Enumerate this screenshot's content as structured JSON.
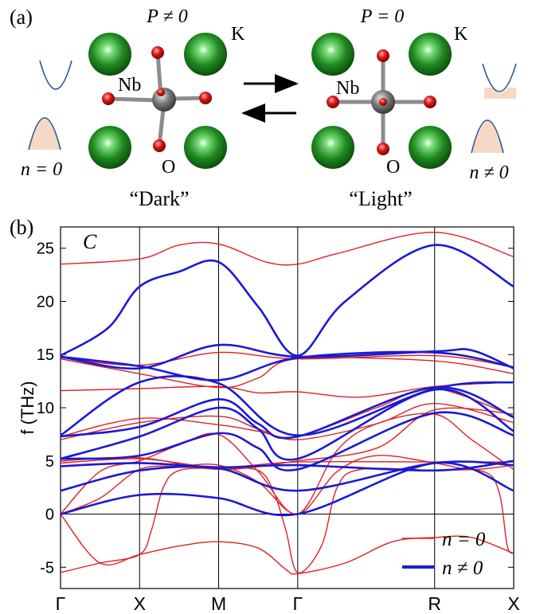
{
  "panel_a": {
    "label": "(a)",
    "left_state": {
      "polarization": "P ≠ 0",
      "caption": "“Dark”",
      "carrier": "n = 0"
    },
    "right_state": {
      "polarization": "P = 0",
      "caption": "“Light”",
      "carrier": "n ≠ 0"
    },
    "atoms": {
      "k": "K",
      "nb": "Nb",
      "o": "O"
    },
    "colors": {
      "k": "#1f8a1f",
      "nb": "#7a7a7a",
      "o": "#d21414",
      "band": "#2f5597",
      "fill": "#f6d9c4"
    }
  },
  "panel_b": {
    "label": "(b)",
    "phase": "C"
  },
  "chart_data": {
    "type": "line",
    "ylabel": "f (THz)",
    "ylim": [
      -7,
      27
    ],
    "yticks": [
      -5,
      0,
      5,
      10,
      15,
      20,
      25
    ],
    "kpoints": [
      "Γ",
      "X",
      "M",
      "Γ",
      "R",
      "X"
    ],
    "kpoint_positions": [
      0,
      1,
      2,
      3,
      4.732,
      5.732
    ],
    "legend": {
      "placement": "bottom-right"
    },
    "series": [
      {
        "name": "n = 0",
        "color": "#e02020",
        "bands": [
          [
            [
              0,
              0
            ],
            [
              0.5,
              -4.6
            ],
            [
              1,
              -3.8
            ],
            [
              1.5,
              -3.0
            ],
            [
              2,
              -2.6
            ],
            [
              2.5,
              -3.2
            ],
            [
              2.85,
              -5.2
            ],
            [
              3,
              -5.6
            ],
            [
              3.6,
              -4.6
            ],
            [
              4.2,
              -2.6
            ],
            [
              4.732,
              -2.2
            ],
            [
              5.2,
              -2.2
            ],
            [
              5.732,
              -3.7
            ]
          ],
          [
            [
              0,
              -5.5
            ],
            [
              0.5,
              -4.6
            ],
            [
              1,
              -3.8
            ],
            [
              1.15,
              -1.5
            ],
            [
              1.3,
              2.5
            ],
            [
              1.5,
              4.1
            ],
            [
              2,
              4.3
            ],
            [
              2.5,
              4.1
            ],
            [
              2.7,
              2.0
            ],
            [
              2.85,
              -1.5
            ],
            [
              3,
              -5.5
            ],
            [
              3.3,
              -3.0
            ],
            [
              3.5,
              2.5
            ],
            [
              3.8,
              4.2
            ],
            [
              4.732,
              4.1
            ],
            [
              5.35,
              4.0
            ],
            [
              5.55,
              2.0
            ],
            [
              5.65,
              -3.0
            ],
            [
              5.732,
              -3.7
            ]
          ],
          [
            [
              0,
              0
            ],
            [
              0.5,
              1.5
            ],
            [
              1,
              4.2
            ],
            [
              1.5,
              4.5
            ],
            [
              2,
              4.6
            ],
            [
              2.5,
              3.0
            ],
            [
              3,
              0
            ],
            [
              3.5,
              4.0
            ],
            [
              4,
              5.5
            ],
            [
              4.732,
              4.8
            ],
            [
              5.2,
              4.2
            ],
            [
              5.732,
              4.6
            ]
          ],
          [
            [
              0,
              0
            ],
            [
              0.5,
              4.0
            ],
            [
              1,
              5.0
            ],
            [
              1.5,
              6.5
            ],
            [
              2,
              7.5
            ],
            [
              2.5,
              4.0
            ],
            [
              3,
              0
            ],
            [
              3.5,
              6.0
            ],
            [
              4,
              8.5
            ],
            [
              4.732,
              9.4
            ],
            [
              5.2,
              7.0
            ],
            [
              5.732,
              4.2
            ]
          ],
          [
            [
              0,
              4.8
            ],
            [
              1,
              5.2
            ],
            [
              2,
              4.4
            ],
            [
              3,
              4.9
            ],
            [
              4.732,
              4.9
            ],
            [
              5.732,
              4.9
            ]
          ],
          [
            [
              0,
              5.0
            ],
            [
              1,
              5.3
            ],
            [
              2,
              4.2
            ],
            [
              3,
              5.0
            ],
            [
              4,
              6.2
            ],
            [
              4.732,
              9.8
            ],
            [
              5.732,
              9.4
            ]
          ],
          [
            [
              0,
              7.0
            ],
            [
              1,
              8.6
            ],
            [
              2,
              9.2
            ],
            [
              2.5,
              8.0
            ],
            [
              3,
              7.0
            ],
            [
              4,
              8.5
            ],
            [
              4.732,
              10.4
            ],
            [
              5.732,
              8.6
            ]
          ],
          [
            [
              0,
              7.3
            ],
            [
              1,
              9.0
            ],
            [
              2,
              8.4
            ],
            [
              2.5,
              7.8
            ],
            [
              3,
              7.3
            ],
            [
              4,
              10.0
            ],
            [
              4.732,
              11.8
            ],
            [
              5.732,
              9.2
            ]
          ],
          [
            [
              0,
              11.6
            ],
            [
              1,
              11.8
            ],
            [
              2,
              12.0
            ],
            [
              2.5,
              11.4
            ],
            [
              3,
              11.5
            ],
            [
              3.8,
              11.0
            ],
            [
              4.732,
              12.0
            ],
            [
              5.732,
              12.4
            ]
          ],
          [
            [
              0,
              14.6
            ],
            [
              1,
              13.2
            ],
            [
              2,
              11.9
            ],
            [
              2.5,
              12.8
            ],
            [
              3,
              14.6
            ],
            [
              4.732,
              14.4
            ],
            [
              5.732,
              13.2
            ]
          ],
          [
            [
              0,
              14.7
            ],
            [
              1,
              14.0
            ],
            [
              2,
              15.2
            ],
            [
              3,
              14.6
            ],
            [
              4.732,
              14.9
            ],
            [
              5.732,
              13.8
            ]
          ],
          [
            [
              0,
              23.5
            ],
            [
              1,
              24.0
            ],
            [
              1.5,
              25.3
            ],
            [
              2,
              25.4
            ],
            [
              2.6,
              23.7
            ],
            [
              3,
              23.5
            ],
            [
              3.5,
              24.5
            ],
            [
              4.732,
              26.5
            ],
            [
              5.732,
              24.2
            ]
          ]
        ]
      },
      {
        "name": "n ≠ 0",
        "color": "#1a1ad4",
        "bands": [
          [
            [
              0,
              0
            ],
            [
              1,
              1.8
            ],
            [
              2,
              1.5
            ],
            [
              3,
              0
            ],
            [
              4.732,
              4.8
            ],
            [
              5.732,
              2.2
            ]
          ],
          [
            [
              0,
              2.2
            ],
            [
              1,
              4.1
            ],
            [
              2,
              4.3
            ],
            [
              3,
              2.2
            ],
            [
              4.732,
              4.8
            ],
            [
              5.732,
              4.6
            ]
          ],
          [
            [
              0,
              4.5
            ],
            [
              1,
              4.8
            ],
            [
              2,
              4.4
            ],
            [
              3,
              4.6
            ],
            [
              4.732,
              4.1
            ],
            [
              5.732,
              5.0
            ]
          ],
          [
            [
              0,
              5.2
            ],
            [
              1,
              5.5
            ],
            [
              2,
              7.6
            ],
            [
              2.5,
              6.2
            ],
            [
              3,
              4.2
            ],
            [
              4.732,
              9.5
            ],
            [
              5.732,
              7.4
            ]
          ],
          [
            [
              0,
              5.2
            ],
            [
              1,
              7.3
            ],
            [
              2,
              10.0
            ],
            [
              2.5,
              8.0
            ],
            [
              3,
              5.2
            ],
            [
              4.732,
              11.7
            ],
            [
              5.732,
              7.8
            ]
          ],
          [
            [
              0,
              7.3
            ],
            [
              1,
              8.2
            ],
            [
              2,
              10.8
            ],
            [
              2.5,
              8.5
            ],
            [
              3,
              7.3
            ],
            [
              4.732,
              11.9
            ],
            [
              5.732,
              9.1
            ]
          ],
          [
            [
              0,
              7.4
            ],
            [
              1,
              12.4
            ],
            [
              2,
              12.3
            ],
            [
              3,
              7.4
            ],
            [
              4.732,
              11.8
            ],
            [
              5.732,
              12.4
            ]
          ],
          [
            [
              0,
              14.8
            ],
            [
              1,
              13.9
            ],
            [
              2,
              12.6
            ],
            [
              3,
              14.7
            ],
            [
              4.732,
              15.2
            ],
            [
              5.732,
              13.8
            ]
          ],
          [
            [
              0,
              14.8
            ],
            [
              1,
              13.7
            ],
            [
              2,
              15.9
            ],
            [
              3,
              14.8
            ],
            [
              4.732,
              15.3
            ],
            [
              5.2,
              15.4
            ],
            [
              5.732,
              13.7
            ]
          ],
          [
            [
              0,
              14.9
            ],
            [
              0.6,
              17.5
            ],
            [
              1,
              21.4
            ],
            [
              1.5,
              22.8
            ],
            [
              2,
              23.7
            ],
            [
              2.5,
              19.5
            ],
            [
              3,
              14.9
            ],
            [
              3.6,
              20.0
            ],
            [
              4.732,
              25.3
            ],
            [
              5.732,
              21.4
            ]
          ]
        ]
      }
    ]
  }
}
